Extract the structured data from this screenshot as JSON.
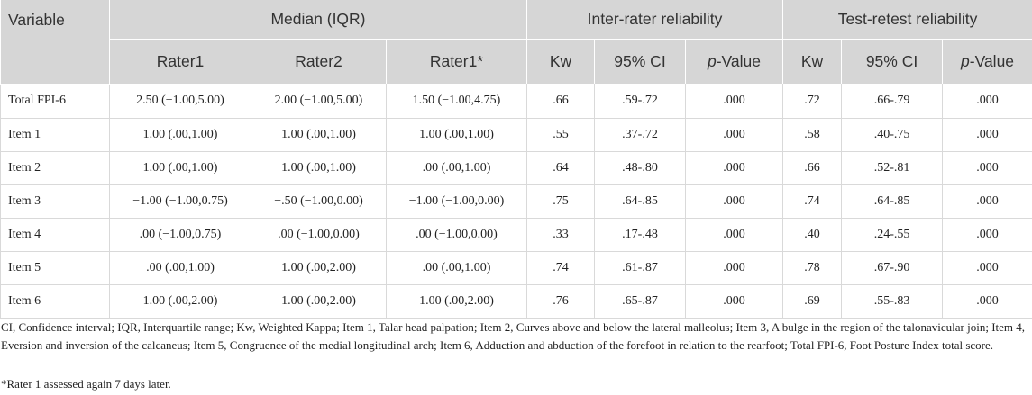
{
  "header": {
    "variable": "Variable",
    "median_group": "Median (IQR)",
    "inter_group": "Inter-rater reliability",
    "test_group": "Test-retest reliability",
    "rater1": "Rater1",
    "rater2": "Rater2",
    "rater1_star": "Rater1*",
    "kw": "Kw",
    "ci": "95% CI",
    "p_italic": "p",
    "p_suffix": "-Value"
  },
  "rows": [
    {
      "variable": "Total FPI-6",
      "rater1": "2.50 (−1.00,5.00)",
      "rater2": "2.00 (−1.00,5.00)",
      "rater1_star": "1.50 (−1.00,4.75)",
      "ir_kw": ".66",
      "ir_ci": ".59-.72",
      "ir_p": ".000",
      "tr_kw": ".72",
      "tr_ci": ".66-.79",
      "tr_p": ".000"
    },
    {
      "variable": "Item 1",
      "rater1": "1.00 (.00,1.00)",
      "rater2": "1.00 (.00,1.00)",
      "rater1_star": "1.00 (.00,1.00)",
      "ir_kw": ".55",
      "ir_ci": ".37-.72",
      "ir_p": ".000",
      "tr_kw": ".58",
      "tr_ci": ".40-.75",
      "tr_p": ".000"
    },
    {
      "variable": "Item 2",
      "rater1": "1.00 (.00,1.00)",
      "rater2": "1.00 (.00,1.00)",
      "rater1_star": ".00 (.00,1.00)",
      "ir_kw": ".64",
      "ir_ci": ".48-.80",
      "ir_p": ".000",
      "tr_kw": ".66",
      "tr_ci": ".52-.81",
      "tr_p": ".000"
    },
    {
      "variable": "Item 3",
      "rater1": "−1.00 (−1.00,0.75)",
      "rater2": "−.50 (−1.00,0.00)",
      "rater1_star": "−1.00 (−1.00,0.00)",
      "ir_kw": ".75",
      "ir_ci": ".64-.85",
      "ir_p": ".000",
      "tr_kw": ".74",
      "tr_ci": ".64-.85",
      "tr_p": ".000"
    },
    {
      "variable": "Item 4",
      "rater1": ".00 (−1.00,0.75)",
      "rater2": ".00 (−1.00,0.00)",
      "rater1_star": ".00 (−1.00,0.00)",
      "ir_kw": ".33",
      "ir_ci": ".17-.48",
      "ir_p": ".000",
      "tr_kw": ".40",
      "tr_ci": ".24-.55",
      "tr_p": ".000"
    },
    {
      "variable": "Item 5",
      "rater1": ".00 (.00,1.00)",
      "rater2": "1.00 (.00,2.00)",
      "rater1_star": ".00 (.00,1.00)",
      "ir_kw": ".74",
      "ir_ci": ".61-.87",
      "ir_p": ".000",
      "tr_kw": ".78",
      "tr_ci": ".67-.90",
      "tr_p": ".000"
    },
    {
      "variable": "Item 6",
      "rater1": "1.00 (.00,2.00)",
      "rater2": "1.00 (.00,2.00)",
      "rater1_star": "1.00 (.00,2.00)",
      "ir_kw": ".76",
      "ir_ci": ".65-.87",
      "ir_p": ".000",
      "tr_kw": ".69",
      "tr_ci": ".55-.83",
      "tr_p": ".000"
    }
  ],
  "footnote": "CI, Confidence interval; IQR, Interquartile range; Kw, Weighted Kappa; Item 1, Talar head palpation; Item 2, Curves above and below the lateral malleolus; Item 3, A bulge in the region of the talonavicular join; Item 4, Eversion and inversion of the calcaneus; Item 5, Congruence of the medial longitudinal arch; Item 6, Adduction and abduction of the forefoot in relation to the rearfoot; Total FPI-6, Foot Posture Index total score.",
  "footnote2": "*Rater 1 assessed again 7 days later."
}
